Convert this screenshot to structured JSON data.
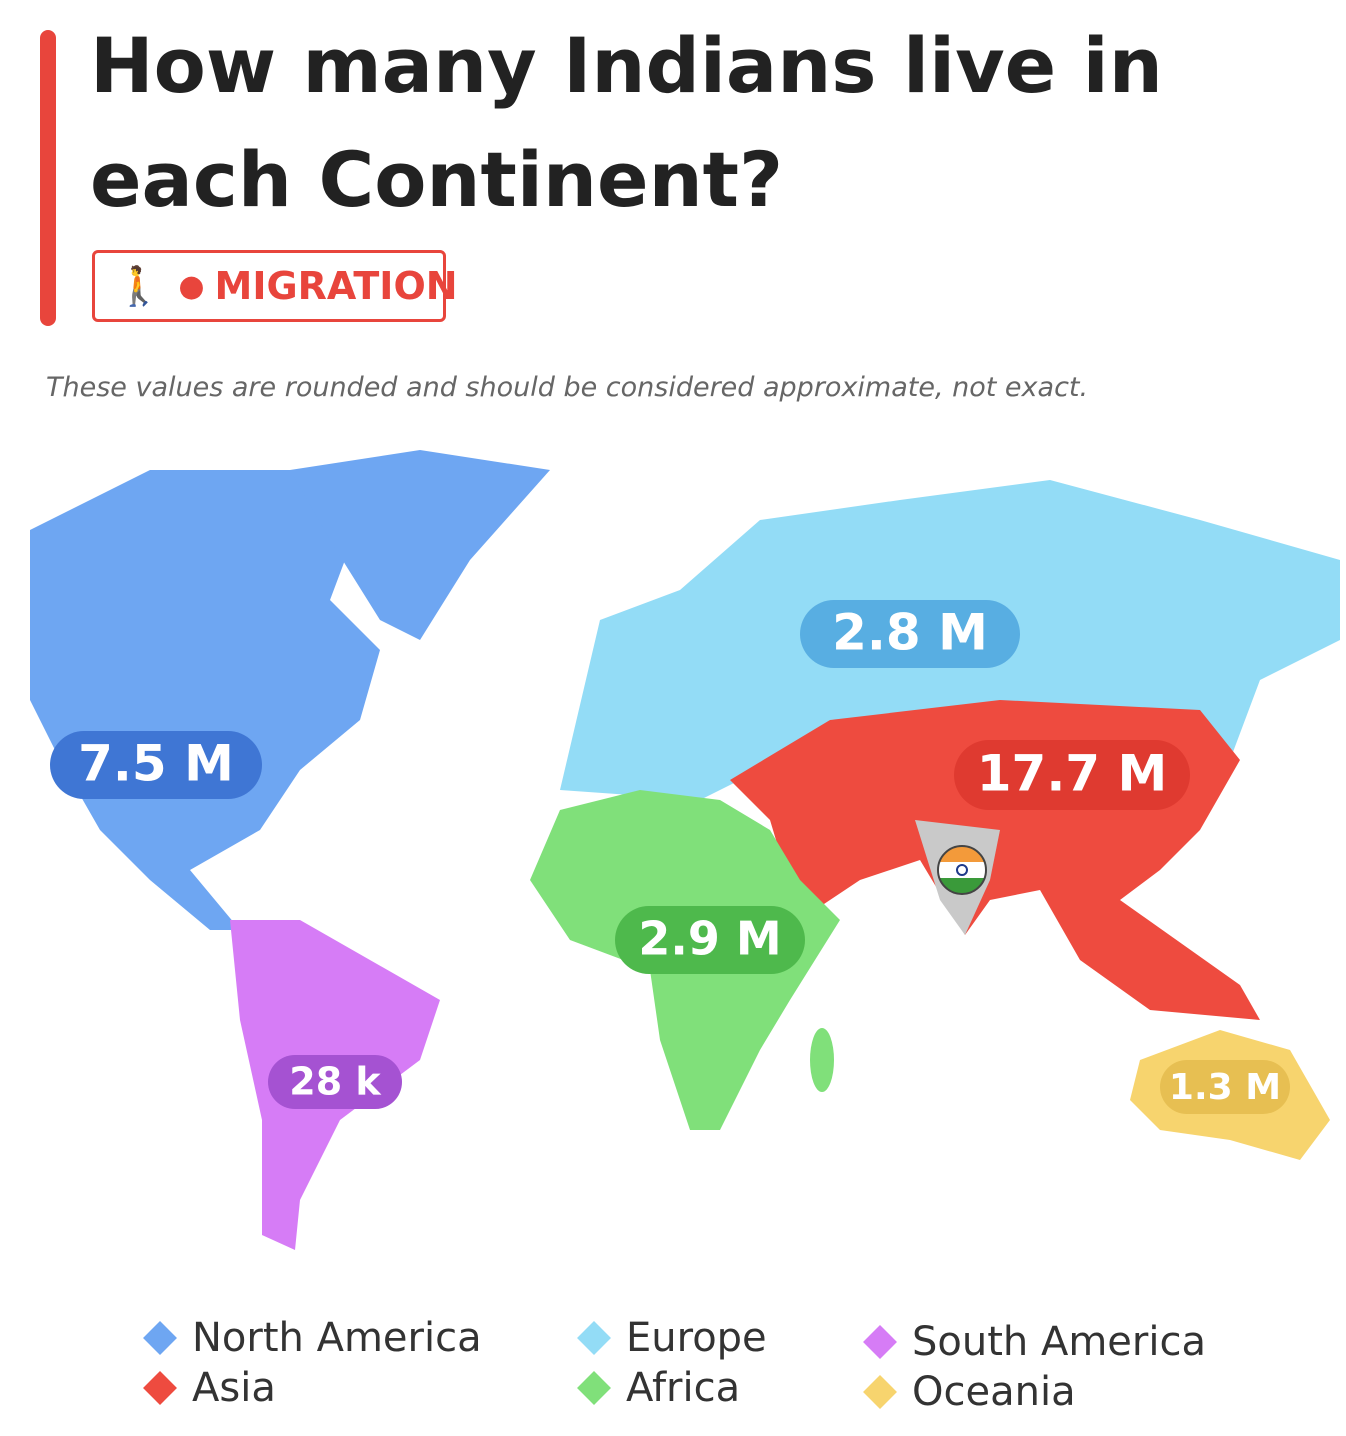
{
  "header": {
    "title_lines": [
      "How many Indians live in",
      "each Continent?"
    ],
    "tag": "MIGRATION"
  },
  "note": "These values are rounded and should be considered approximate, not exact.",
  "regions": [
    {
      "name": "North America",
      "color": "#6ea6f2",
      "label": "7.5 M",
      "label_color": "#3f76d4"
    },
    {
      "name": "Asia",
      "color": "#ee4b3f",
      "label": "17.7 M",
      "label_color": "#df3a30"
    },
    {
      "name": "Europe",
      "color": "#93dcf6",
      "label": "2.8 M",
      "label_color": "#58aee2"
    },
    {
      "name": "Africa",
      "color": "#80e07a",
      "label": "2.9 M",
      "label_color": "#4eb94c"
    },
    {
      "name": "South America",
      "color": "#d67cf6",
      "label": "28 k",
      "label_color": "#a552d2"
    },
    {
      "name": "Oceania",
      "color": "#f7d46e",
      "label": "1.3 M",
      "label_color": "#e7bf52"
    }
  ]
}
